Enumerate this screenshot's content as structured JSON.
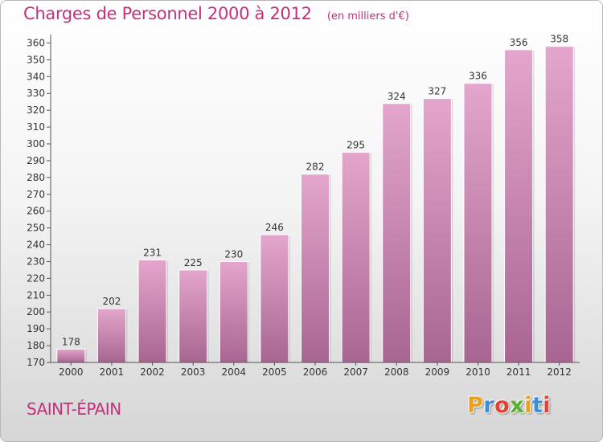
{
  "chart_data": {
    "type": "bar",
    "title": "Charges de Personnel 2000 à 2012",
    "subtitle": "(en milliers d'€)",
    "categories": [
      "2000",
      "2001",
      "2002",
      "2003",
      "2004",
      "2005",
      "2006",
      "2007",
      "2008",
      "2009",
      "2010",
      "2011",
      "2012"
    ],
    "values": [
      178,
      202,
      231,
      225,
      230,
      246,
      282,
      295,
      324,
      327,
      336,
      356,
      358
    ],
    "ylim": [
      170,
      365
    ],
    "yticks": [
      170,
      180,
      190,
      200,
      210,
      220,
      230,
      240,
      250,
      260,
      270,
      280,
      290,
      300,
      310,
      320,
      330,
      340,
      350,
      360
    ],
    "grid": false,
    "legend": "none",
    "bar_color_top": "#e4a6cc",
    "bar_color_bottom": "#a86592",
    "xlabel": "",
    "ylabel": ""
  },
  "footer": {
    "commune": "SAINT-ÉPAIN",
    "brand": {
      "text": "Proxiti",
      "letters": [
        {
          "ch": "P",
          "color": "#e8a020"
        },
        {
          "ch": "r",
          "color": "#3a8fd8"
        },
        {
          "ch": "o",
          "color": "#e84030"
        },
        {
          "ch": "x",
          "color": "#5ab030"
        },
        {
          "ch": "i",
          "color": "#e8a020"
        },
        {
          "ch": "t",
          "color": "#3a8fd8"
        },
        {
          "ch": "i",
          "color": "#e84030"
        }
      ]
    }
  }
}
